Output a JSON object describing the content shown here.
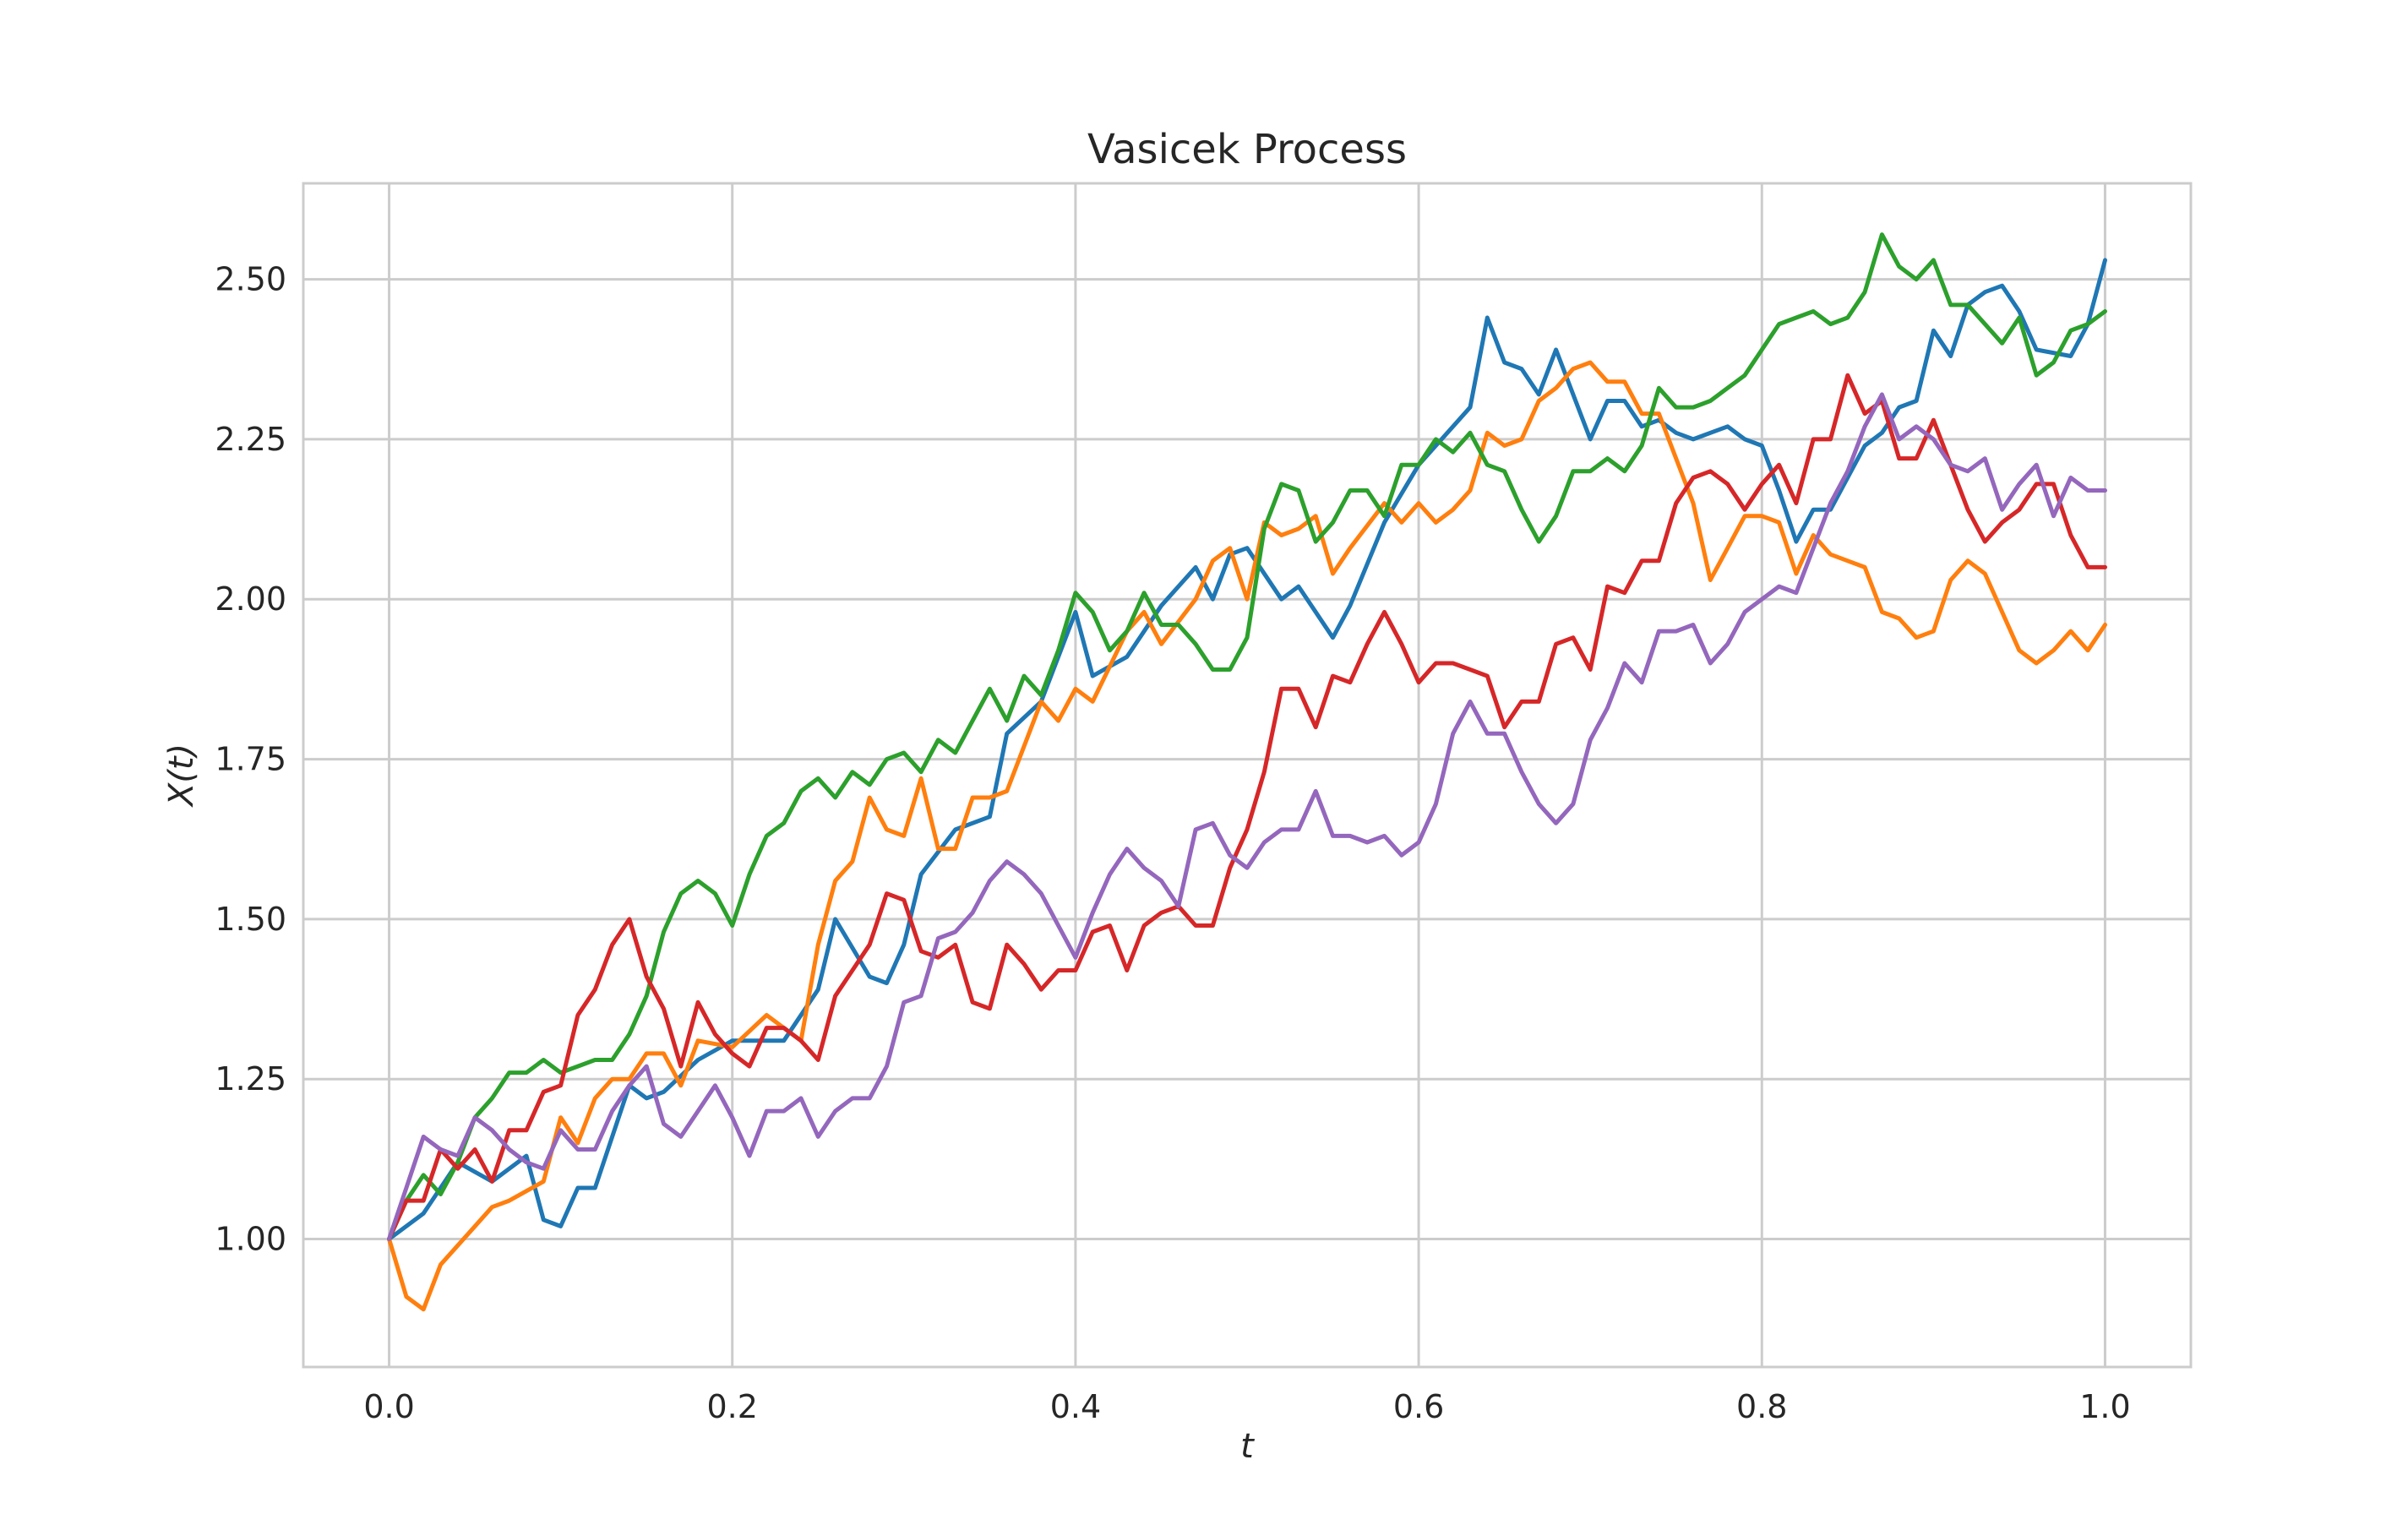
{
  "chart_data": {
    "type": "line",
    "title": "Vasicek Process",
    "xlabel": "t",
    "ylabel": "X(t)",
    "xlim": [
      -0.05,
      1.05
    ],
    "ylim": [
      0.8,
      2.65
    ],
    "xticks": [
      0.0,
      0.2,
      0.4,
      0.6,
      0.8,
      1.0
    ],
    "xtick_labels": [
      "0.0",
      "0.2",
      "0.4",
      "0.6",
      "0.8",
      "1.0"
    ],
    "yticks": [
      1.0,
      1.25,
      1.5,
      1.75,
      2.0,
      2.25,
      2.5
    ],
    "ytick_labels": [
      "1.00",
      "1.25",
      "1.50",
      "1.75",
      "2.00",
      "2.25",
      "2.50"
    ],
    "grid": true,
    "legend": false,
    "series": [
      {
        "color": "#1f77b4",
        "x": [
          0.0,
          0.02,
          0.04,
          0.06,
          0.08,
          0.09,
          0.1,
          0.11,
          0.12,
          0.14,
          0.15,
          0.16,
          0.18,
          0.2,
          0.23,
          0.25,
          0.26,
          0.28,
          0.29,
          0.3,
          0.31,
          0.33,
          0.35,
          0.36,
          0.38,
          0.4,
          0.41,
          0.43,
          0.45,
          0.47,
          0.48,
          0.49,
          0.5,
          0.52,
          0.53,
          0.55,
          0.56,
          0.58,
          0.6,
          0.61,
          0.63,
          0.64,
          0.65,
          0.66,
          0.67,
          0.68,
          0.7,
          0.71,
          0.72,
          0.73,
          0.74,
          0.75,
          0.76,
          0.78,
          0.79,
          0.8,
          0.81,
          0.82,
          0.83,
          0.84,
          0.86,
          0.87,
          0.88,
          0.89,
          0.9,
          0.91,
          0.92,
          0.93,
          0.94,
          0.95,
          0.96,
          0.98,
          0.99,
          1.0
        ],
        "y": [
          1.0,
          1.04,
          1.12,
          1.09,
          1.13,
          1.03,
          1.02,
          1.08,
          1.08,
          1.24,
          1.22,
          1.23,
          1.28,
          1.31,
          1.31,
          1.39,
          1.5,
          1.41,
          1.4,
          1.46,
          1.57,
          1.64,
          1.66,
          1.79,
          1.84,
          1.98,
          1.88,
          1.91,
          1.99,
          2.05,
          2.0,
          2.07,
          2.08,
          2.0,
          2.02,
          1.94,
          1.99,
          2.12,
          2.21,
          2.24,
          2.3,
          2.44,
          2.37,
          2.36,
          2.32,
          2.39,
          2.25,
          2.31,
          2.31,
          2.27,
          2.28,
          2.26,
          2.25,
          2.27,
          2.25,
          2.24,
          2.17,
          2.09,
          2.14,
          2.14,
          2.24,
          2.26,
          2.3,
          2.31,
          2.42,
          2.38,
          2.46,
          2.48,
          2.49,
          2.45,
          2.39,
          2.38,
          2.43,
          2.53
        ]
      },
      {
        "color": "#ff7f0e",
        "x": [
          0.0,
          0.01,
          0.02,
          0.03,
          0.05,
          0.06,
          0.07,
          0.09,
          0.1,
          0.11,
          0.12,
          0.13,
          0.14,
          0.15,
          0.16,
          0.17,
          0.18,
          0.2,
          0.22,
          0.24,
          0.25,
          0.26,
          0.27,
          0.28,
          0.29,
          0.3,
          0.31,
          0.32,
          0.33,
          0.34,
          0.35,
          0.36,
          0.38,
          0.39,
          0.4,
          0.41,
          0.43,
          0.44,
          0.45,
          0.47,
          0.48,
          0.49,
          0.5,
          0.51,
          0.52,
          0.53,
          0.54,
          0.55,
          0.56,
          0.58,
          0.59,
          0.6,
          0.61,
          0.62,
          0.63,
          0.64,
          0.65,
          0.66,
          0.67,
          0.68,
          0.69,
          0.7,
          0.71,
          0.72,
          0.73,
          0.74,
          0.75,
          0.76,
          0.77,
          0.78,
          0.79,
          0.8,
          0.81,
          0.82,
          0.83,
          0.84,
          0.85,
          0.86,
          0.87,
          0.88,
          0.89,
          0.9,
          0.91,
          0.92,
          0.93,
          0.94,
          0.95,
          0.96,
          0.97,
          0.98,
          0.99,
          1.0
        ],
        "y": [
          1.0,
          0.91,
          0.89,
          0.96,
          1.02,
          1.05,
          1.06,
          1.09,
          1.19,
          1.15,
          1.22,
          1.25,
          1.25,
          1.29,
          1.29,
          1.24,
          1.31,
          1.3,
          1.35,
          1.31,
          1.46,
          1.56,
          1.59,
          1.69,
          1.64,
          1.63,
          1.72,
          1.61,
          1.61,
          1.69,
          1.69,
          1.7,
          1.84,
          1.81,
          1.86,
          1.84,
          1.95,
          1.98,
          1.93,
          2.0,
          2.06,
          2.08,
          2.0,
          2.12,
          2.1,
          2.11,
          2.13,
          2.04,
          2.08,
          2.15,
          2.12,
          2.15,
          2.12,
          2.14,
          2.17,
          2.26,
          2.24,
          2.25,
          2.31,
          2.33,
          2.36,
          2.37,
          2.34,
          2.34,
          2.29,
          2.29,
          2.22,
          2.15,
          2.03,
          2.08,
          2.13,
          2.13,
          2.12,
          2.04,
          2.1,
          2.07,
          2.06,
          2.05,
          1.98,
          1.97,
          1.94,
          1.95,
          2.03,
          2.06,
          2.04,
          1.98,
          1.92,
          1.9,
          1.92,
          1.95,
          1.92,
          1.96
        ]
      },
      {
        "color": "#2ca02c",
        "x": [
          0.0,
          0.01,
          0.02,
          0.03,
          0.04,
          0.05,
          0.06,
          0.07,
          0.08,
          0.09,
          0.1,
          0.11,
          0.12,
          0.13,
          0.14,
          0.15,
          0.16,
          0.17,
          0.18,
          0.19,
          0.2,
          0.21,
          0.22,
          0.23,
          0.24,
          0.25,
          0.26,
          0.27,
          0.28,
          0.29,
          0.3,
          0.31,
          0.32,
          0.33,
          0.34,
          0.35,
          0.36,
          0.37,
          0.38,
          0.39,
          0.4,
          0.41,
          0.42,
          0.43,
          0.44,
          0.45,
          0.46,
          0.47,
          0.48,
          0.49,
          0.5,
          0.51,
          0.52,
          0.53,
          0.54,
          0.55,
          0.56,
          0.57,
          0.58,
          0.59,
          0.6,
          0.61,
          0.62,
          0.63,
          0.64,
          0.65,
          0.66,
          0.67,
          0.68,
          0.69,
          0.7,
          0.71,
          0.72,
          0.73,
          0.74,
          0.75,
          0.76,
          0.77,
          0.78,
          0.79,
          0.8,
          0.81,
          0.82,
          0.83,
          0.84,
          0.85,
          0.86,
          0.87,
          0.88,
          0.89,
          0.9,
          0.91,
          0.92,
          0.93,
          0.94,
          0.95,
          0.96,
          0.97,
          0.98,
          0.99,
          1.0
        ],
        "y": [
          1.0,
          1.06,
          1.1,
          1.07,
          1.12,
          1.19,
          1.22,
          1.26,
          1.26,
          1.28,
          1.26,
          1.27,
          1.28,
          1.28,
          1.32,
          1.38,
          1.48,
          1.54,
          1.56,
          1.54,
          1.49,
          1.57,
          1.63,
          1.65,
          1.7,
          1.72,
          1.69,
          1.73,
          1.71,
          1.75,
          1.76,
          1.73,
          1.78,
          1.76,
          1.81,
          1.86,
          1.81,
          1.88,
          1.85,
          1.92,
          2.01,
          1.98,
          1.92,
          1.95,
          2.01,
          1.96,
          1.96,
          1.93,
          1.89,
          1.89,
          1.94,
          2.11,
          2.18,
          2.17,
          2.09,
          2.12,
          2.17,
          2.17,
          2.13,
          2.21,
          2.21,
          2.25,
          2.23,
          2.26,
          2.21,
          2.2,
          2.14,
          2.09,
          2.13,
          2.2,
          2.2,
          2.22,
          2.2,
          2.24,
          2.33,
          2.3,
          2.3,
          2.31,
          2.33,
          2.35,
          2.39,
          2.43,
          2.44,
          2.45,
          2.43,
          2.44,
          2.48,
          2.57,
          2.52,
          2.5,
          2.53,
          2.46,
          2.46,
          2.43,
          2.4,
          2.44,
          2.35,
          2.37,
          2.42,
          2.43,
          2.45
        ]
      },
      {
        "color": "#d62728",
        "x": [
          0.0,
          0.01,
          0.02,
          0.03,
          0.04,
          0.05,
          0.06,
          0.07,
          0.08,
          0.09,
          0.1,
          0.11,
          0.12,
          0.13,
          0.14,
          0.15,
          0.16,
          0.17,
          0.18,
          0.19,
          0.2,
          0.21,
          0.22,
          0.23,
          0.24,
          0.25,
          0.26,
          0.27,
          0.28,
          0.29,
          0.3,
          0.31,
          0.32,
          0.33,
          0.34,
          0.35,
          0.36,
          0.37,
          0.38,
          0.39,
          0.4,
          0.41,
          0.42,
          0.43,
          0.44,
          0.45,
          0.46,
          0.47,
          0.48,
          0.49,
          0.5,
          0.51,
          0.52,
          0.53,
          0.54,
          0.55,
          0.56,
          0.57,
          0.58,
          0.59,
          0.6,
          0.61,
          0.62,
          0.63,
          0.64,
          0.65,
          0.66,
          0.67,
          0.68,
          0.69,
          0.7,
          0.71,
          0.72,
          0.73,
          0.74,
          0.75,
          0.76,
          0.77,
          0.78,
          0.79,
          0.8,
          0.81,
          0.82,
          0.83,
          0.84,
          0.85,
          0.86,
          0.87,
          0.88,
          0.89,
          0.9,
          0.91,
          0.92,
          0.93,
          0.94,
          0.95,
          0.96,
          0.97,
          0.98,
          0.99,
          1.0
        ],
        "y": [
          1.0,
          1.06,
          1.06,
          1.14,
          1.11,
          1.14,
          1.09,
          1.17,
          1.17,
          1.23,
          1.24,
          1.35,
          1.39,
          1.46,
          1.5,
          1.41,
          1.36,
          1.27,
          1.37,
          1.32,
          1.29,
          1.27,
          1.33,
          1.33,
          1.31,
          1.28,
          1.38,
          1.42,
          1.46,
          1.54,
          1.53,
          1.45,
          1.44,
          1.46,
          1.37,
          1.36,
          1.46,
          1.43,
          1.39,
          1.42,
          1.42,
          1.48,
          1.49,
          1.42,
          1.49,
          1.51,
          1.52,
          1.49,
          1.49,
          1.58,
          1.64,
          1.73,
          1.86,
          1.86,
          1.8,
          1.88,
          1.87,
          1.93,
          1.98,
          1.93,
          1.87,
          1.9,
          1.9,
          1.89,
          1.88,
          1.8,
          1.84,
          1.84,
          1.93,
          1.94,
          1.89,
          2.02,
          2.01,
          2.06,
          2.06,
          2.15,
          2.19,
          2.2,
          2.18,
          2.14,
          2.18,
          2.21,
          2.15,
          2.25,
          2.25,
          2.35,
          2.29,
          2.31,
          2.22,
          2.22,
          2.28,
          2.21,
          2.14,
          2.09,
          2.12,
          2.14,
          2.18,
          2.18,
          2.1,
          2.05,
          2.05
        ]
      },
      {
        "color": "#9467bd",
        "x": [
          0.0,
          0.01,
          0.02,
          0.03,
          0.04,
          0.05,
          0.06,
          0.07,
          0.08,
          0.09,
          0.1,
          0.11,
          0.12,
          0.13,
          0.14,
          0.15,
          0.16,
          0.17,
          0.18,
          0.19,
          0.2,
          0.21,
          0.22,
          0.23,
          0.24,
          0.25,
          0.26,
          0.27,
          0.28,
          0.29,
          0.3,
          0.31,
          0.32,
          0.33,
          0.34,
          0.35,
          0.36,
          0.37,
          0.38,
          0.39,
          0.4,
          0.41,
          0.42,
          0.43,
          0.44,
          0.45,
          0.46,
          0.47,
          0.48,
          0.49,
          0.5,
          0.51,
          0.52,
          0.53,
          0.54,
          0.55,
          0.56,
          0.57,
          0.58,
          0.59,
          0.6,
          0.61,
          0.62,
          0.63,
          0.64,
          0.65,
          0.66,
          0.67,
          0.68,
          0.69,
          0.7,
          0.71,
          0.72,
          0.73,
          0.74,
          0.75,
          0.76,
          0.77,
          0.78,
          0.79,
          0.8,
          0.81,
          0.82,
          0.83,
          0.84,
          0.85,
          0.86,
          0.87,
          0.88,
          0.89,
          0.9,
          0.91,
          0.92,
          0.93,
          0.94,
          0.95,
          0.96,
          0.97,
          0.98,
          0.99,
          1.0
        ],
        "y": [
          1.0,
          1.08,
          1.16,
          1.14,
          1.13,
          1.19,
          1.17,
          1.14,
          1.12,
          1.11,
          1.17,
          1.14,
          1.14,
          1.2,
          1.24,
          1.27,
          1.18,
          1.16,
          1.2,
          1.24,
          1.19,
          1.13,
          1.2,
          1.2,
          1.22,
          1.16,
          1.2,
          1.22,
          1.22,
          1.27,
          1.37,
          1.38,
          1.47,
          1.48,
          1.51,
          1.56,
          1.59,
          1.57,
          1.54,
          1.49,
          1.44,
          1.51,
          1.57,
          1.61,
          1.58,
          1.56,
          1.52,
          1.64,
          1.65,
          1.6,
          1.58,
          1.62,
          1.64,
          1.64,
          1.7,
          1.63,
          1.63,
          1.62,
          1.63,
          1.6,
          1.62,
          1.68,
          1.79,
          1.84,
          1.79,
          1.79,
          1.73,
          1.68,
          1.65,
          1.68,
          1.78,
          1.83,
          1.9,
          1.87,
          1.95,
          1.95,
          1.96,
          1.9,
          1.93,
          1.98,
          2.0,
          2.02,
          2.01,
          2.08,
          2.15,
          2.2,
          2.27,
          2.32,
          2.25,
          2.27,
          2.25,
          2.21,
          2.2,
          2.22,
          2.14,
          2.18,
          2.21,
          2.13,
          2.19,
          2.17,
          2.17
        ]
      }
    ]
  }
}
